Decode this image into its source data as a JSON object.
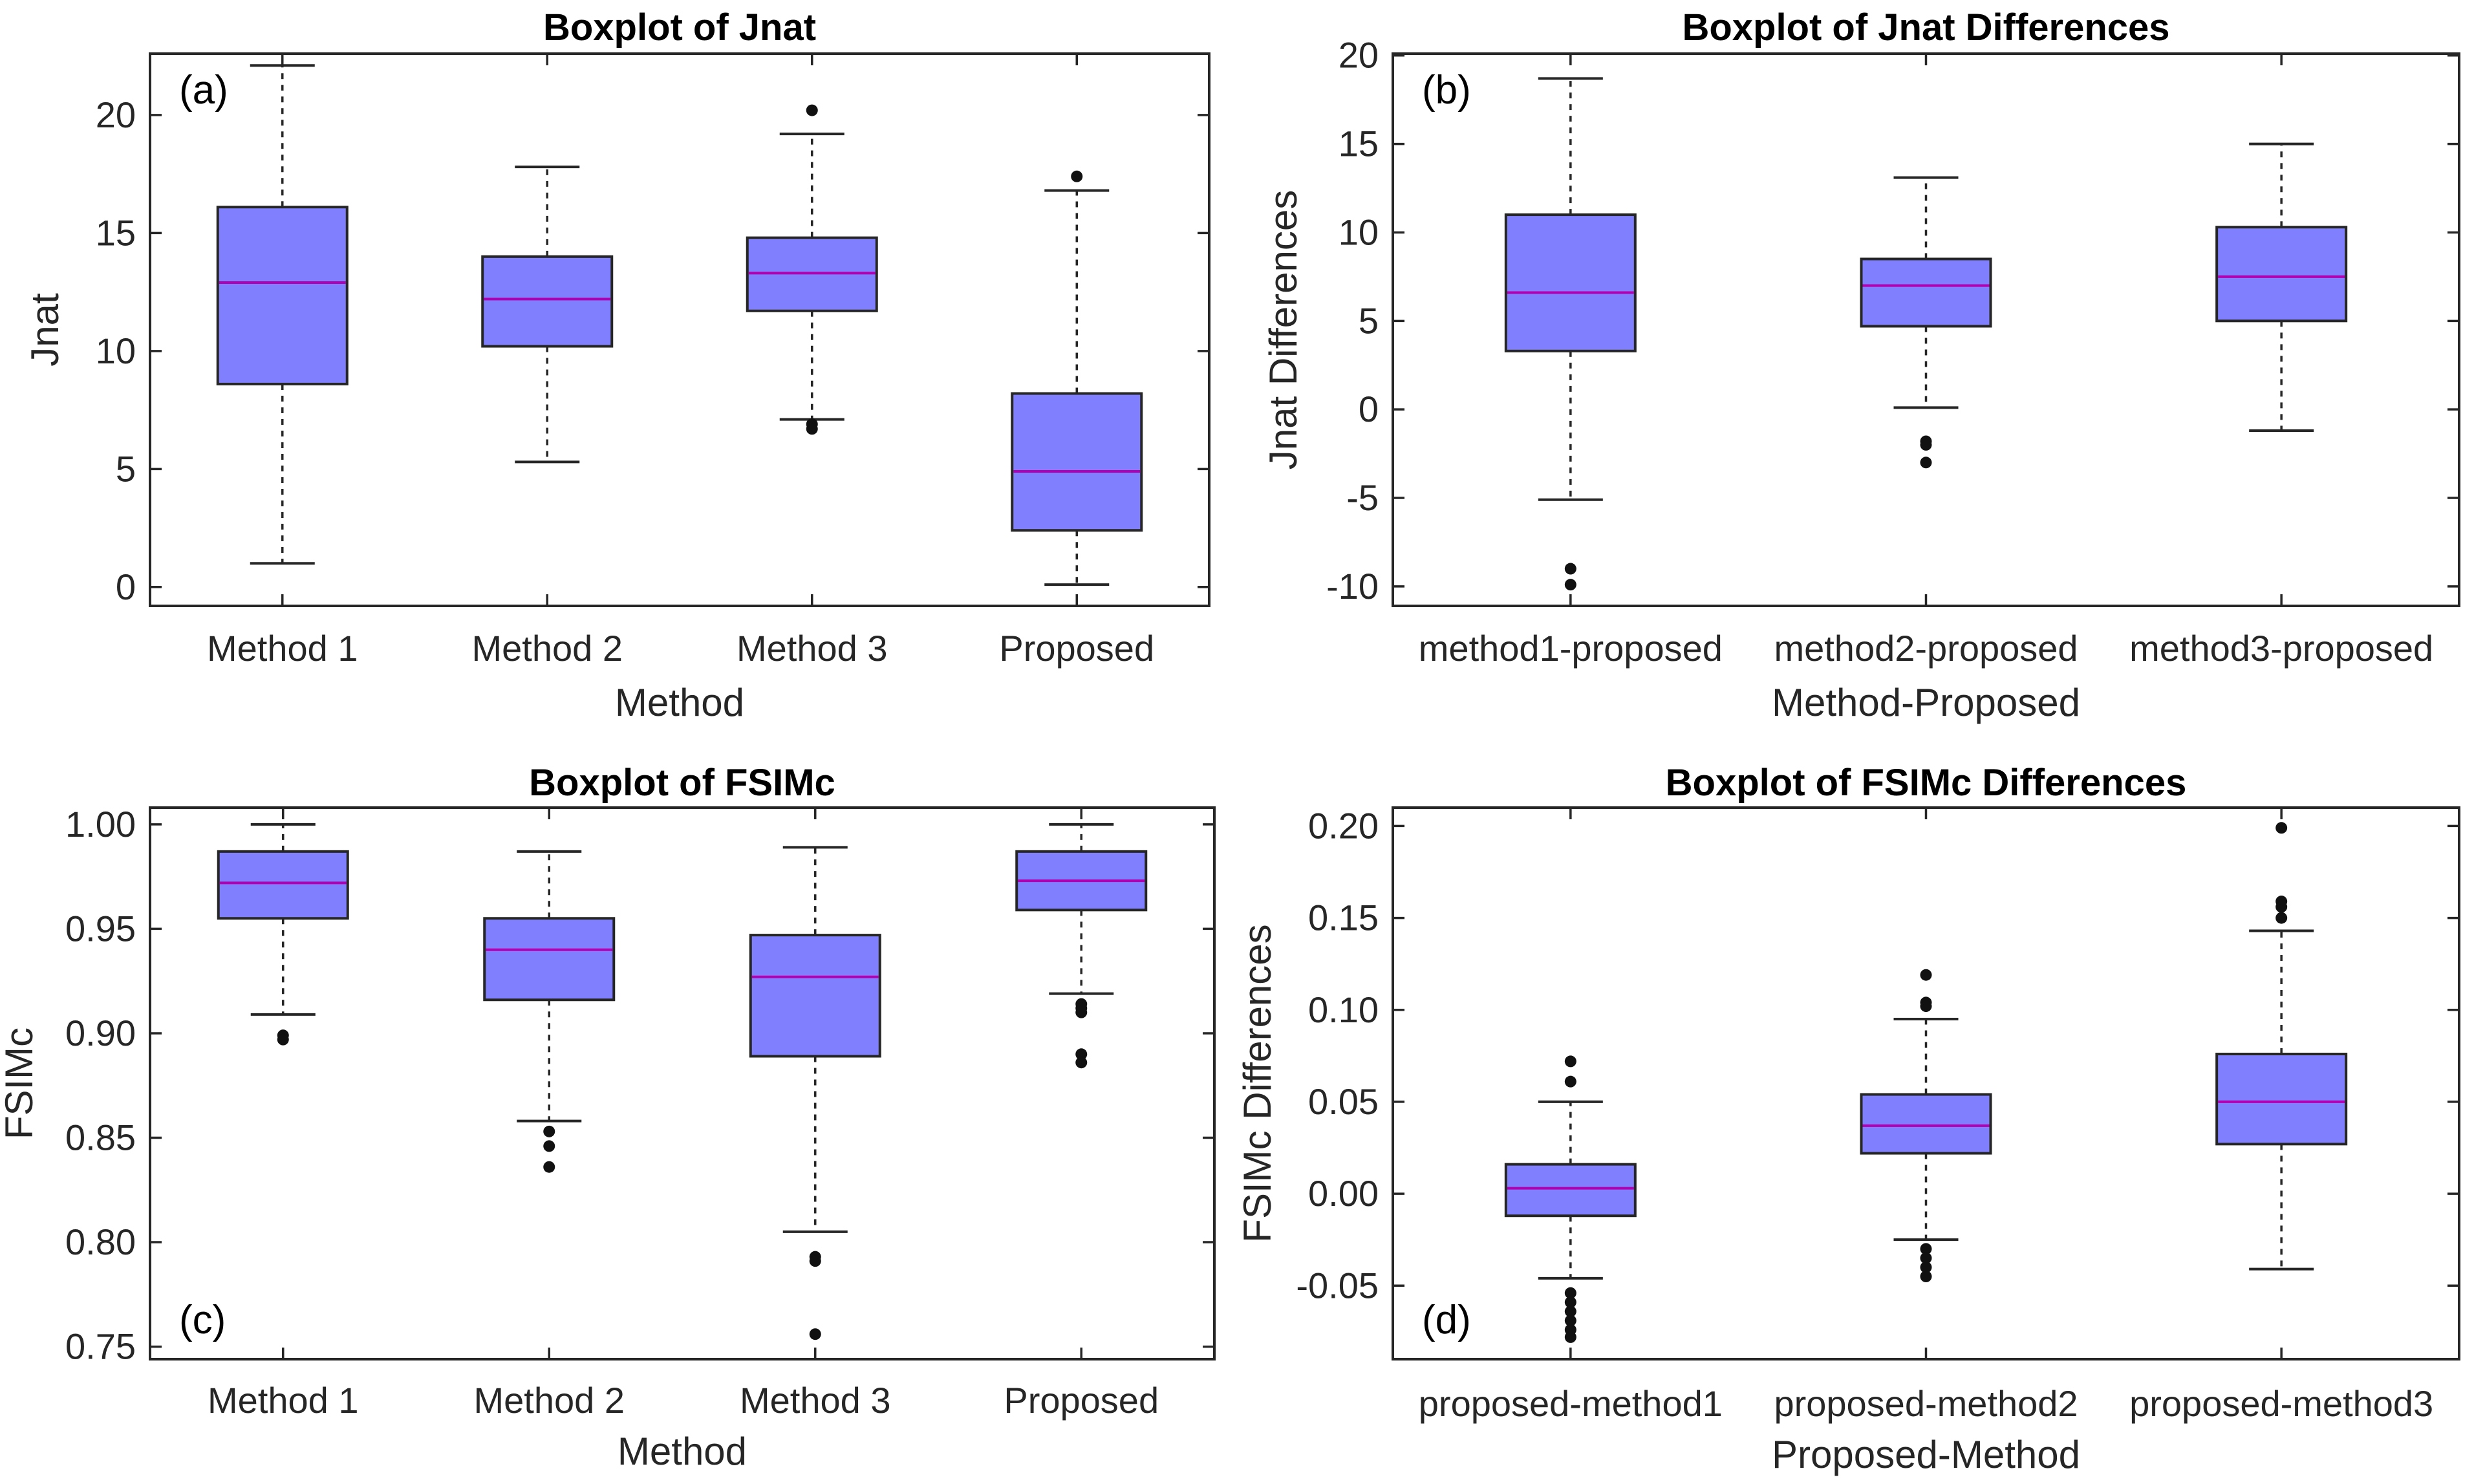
{
  "chart_data": [
    {
      "panel": "(a)",
      "type": "boxplot",
      "title": "Boxplot of Jnat",
      "xlabel": "Method",
      "ylabel": "Jnat",
      "ylim": [
        -0.8,
        22.6
      ],
      "yticks": [
        0,
        5,
        10,
        15,
        20
      ],
      "ytick_labels": [
        "0",
        "5",
        "10",
        "15",
        "20"
      ],
      "tag_position": "top-left",
      "categories": [
        "Method 1",
        "Method 2",
        "Method 3",
        "Proposed"
      ],
      "boxes": [
        {
          "q1": 8.6,
          "median": 12.9,
          "q3": 16.1,
          "whisker_low": 1.0,
          "whisker_high": 22.1,
          "outliers": []
        },
        {
          "q1": 10.2,
          "median": 12.2,
          "q3": 14.0,
          "whisker_low": 5.3,
          "whisker_high": 17.8,
          "outliers": []
        },
        {
          "q1": 11.7,
          "median": 13.3,
          "q3": 14.8,
          "whisker_low": 7.1,
          "whisker_high": 19.2,
          "outliers": [
            20.2,
            6.9,
            6.7
          ]
        },
        {
          "q1": 2.4,
          "median": 4.9,
          "q3": 8.2,
          "whisker_low": 0.1,
          "whisker_high": 16.8,
          "outliers": [
            17.4
          ]
        }
      ]
    },
    {
      "panel": "(b)",
      "type": "boxplot",
      "title": "Boxplot of Jnat Differences",
      "xlabel": "Method-Proposed",
      "ylabel": "Jnat Differences",
      "ylim": [
        -11.1,
        20.1
      ],
      "yticks": [
        -10,
        -5,
        0,
        5,
        10,
        15,
        20
      ],
      "ytick_labels": [
        "-10",
        "-5",
        "0",
        "5",
        "10",
        "15",
        "20"
      ],
      "tag_position": "top-left",
      "categories": [
        "method1-proposed",
        "method2-proposed",
        "method3-proposed"
      ],
      "boxes": [
        {
          "q1": 3.3,
          "median": 6.6,
          "q3": 11.0,
          "whisker_low": -5.1,
          "whisker_high": 18.7,
          "outliers": [
            -9.0,
            -9.9
          ]
        },
        {
          "q1": 4.7,
          "median": 7.0,
          "q3": 8.5,
          "whisker_low": 0.1,
          "whisker_high": 13.1,
          "outliers": [
            -1.8,
            -2.0,
            -3.0
          ]
        },
        {
          "q1": 5.0,
          "median": 7.5,
          "q3": 10.3,
          "whisker_low": -1.2,
          "whisker_high": 15.0,
          "outliers": []
        }
      ]
    },
    {
      "panel": "(c)",
      "type": "boxplot",
      "title": "Boxplot of FSIMc",
      "xlabel": "Method",
      "ylabel": "FSIMc",
      "ylim": [
        0.744,
        1.008
      ],
      "yticks": [
        0.75,
        0.8,
        0.85,
        0.9,
        0.95,
        1.0
      ],
      "ytick_labels": [
        "0.75",
        "0.80",
        "0.85",
        "0.90",
        "0.95",
        "1.00"
      ],
      "tag_position": "bottom-left",
      "categories": [
        "Method 1",
        "Method 2",
        "Method 3",
        "Proposed"
      ],
      "boxes": [
        {
          "q1": 0.955,
          "median": 0.972,
          "q3": 0.987,
          "whisker_low": 0.909,
          "whisker_high": 1.0,
          "outliers": [
            0.899,
            0.897
          ]
        },
        {
          "q1": 0.916,
          "median": 0.94,
          "q3": 0.955,
          "whisker_low": 0.858,
          "whisker_high": 0.987,
          "outliers": [
            0.853,
            0.846,
            0.836
          ]
        },
        {
          "q1": 0.889,
          "median": 0.927,
          "q3": 0.947,
          "whisker_low": 0.805,
          "whisker_high": 0.989,
          "outliers": [
            0.793,
            0.791,
            0.756
          ]
        },
        {
          "q1": 0.959,
          "median": 0.973,
          "q3": 0.987,
          "whisker_low": 0.919,
          "whisker_high": 1.0,
          "outliers": [
            0.914,
            0.912,
            0.91,
            0.89,
            0.886
          ]
        }
      ]
    },
    {
      "panel": "(d)",
      "type": "boxplot",
      "title": "Boxplot of FSIMc Differences",
      "xlabel": "Proposed-Method",
      "ylabel": "FSIMc Differences",
      "ylim": [
        -0.09,
        0.21
      ],
      "yticks": [
        -0.05,
        0.0,
        0.05,
        0.1,
        0.15,
        0.2
      ],
      "ytick_labels": [
        "-0.05",
        "0.00",
        "0.05",
        "0.10",
        "0.15",
        "0.20"
      ],
      "tag_position": "bottom-left",
      "categories": [
        "proposed-method1",
        "proposed-method2",
        "proposed-method3"
      ],
      "boxes": [
        {
          "q1": -0.012,
          "median": 0.003,
          "q3": 0.016,
          "whisker_low": -0.046,
          "whisker_high": 0.05,
          "outliers": [
            0.072,
            0.061,
            -0.054,
            -0.059,
            -0.064,
            -0.069,
            -0.074,
            -0.078
          ]
        },
        {
          "q1": 0.022,
          "median": 0.037,
          "q3": 0.054,
          "whisker_low": -0.025,
          "whisker_high": 0.095,
          "outliers": [
            0.119,
            0.104,
            0.102,
            -0.03,
            -0.035,
            -0.04,
            -0.045
          ]
        },
        {
          "q1": 0.027,
          "median": 0.05,
          "q3": 0.076,
          "whisker_low": -0.041,
          "whisker_high": 0.143,
          "outliers": [
            0.199,
            0.159,
            0.156,
            0.15
          ]
        }
      ]
    }
  ]
}
